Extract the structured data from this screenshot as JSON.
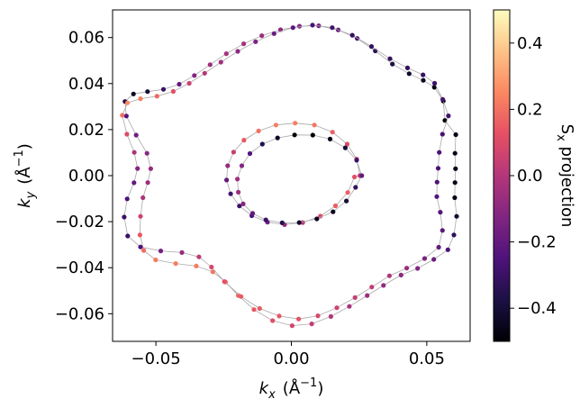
{
  "chart_data": {
    "type": "scatter",
    "title": "",
    "xlabel": {
      "var": "k",
      "sub": "x",
      "unit": "(Å",
      "sup": "−1",
      "close": ")"
    },
    "ylabel": {
      "var": "k",
      "sub": "y",
      "unit": "(Å",
      "sup": "−1",
      "close": ")"
    },
    "xlim": [
      -0.066,
      0.066
    ],
    "ylim": [
      -0.072,
      0.072
    ],
    "xticks": [
      -0.05,
      0.0,
      0.05
    ],
    "xtick_labels": [
      "−0.05",
      "0.00",
      "0.05"
    ],
    "yticks": [
      -0.06,
      -0.04,
      -0.02,
      0.0,
      0.02,
      0.04,
      0.06
    ],
    "ytick_labels": [
      "−0.06",
      "−0.04",
      "−0.02",
      "0.00",
      "0.02",
      "0.04",
      "0.06"
    ],
    "grid": false,
    "colormap": "magma",
    "colorbar": {
      "label": {
        "var": "S",
        "sub": "x",
        "rest": " projection"
      },
      "range": [
        -0.5,
        0.5
      ],
      "ticks": [
        -0.4,
        -0.2,
        0.0,
        0.2,
        0.4
      ],
      "tick_labels": [
        "−0.4",
        "−0.2",
        "0.0",
        "0.2",
        "0.4"
      ]
    },
    "contours": [
      {
        "id": "outer-a",
        "points": [
          [
            0.0607,
            0.0178
          ],
          [
            0.0567,
            0.024
          ],
          [
            0.0561,
            0.0324
          ],
          [
            0.0528,
            0.0384
          ],
          [
            0.0487,
            0.0414
          ],
          [
            0.0435,
            0.0443
          ],
          [
            0.0373,
            0.0485
          ],
          [
            0.031,
            0.0542
          ],
          [
            0.0243,
            0.0596
          ],
          [
            0.0173,
            0.0633
          ],
          [
            0.0101,
            0.0651
          ],
          [
            0.003,
            0.0649
          ],
          [
            -0.004,
            0.0634
          ],
          [
            -0.0109,
            0.0608
          ],
          [
            -0.0176,
            0.0573
          ],
          [
            -0.024,
            0.053
          ],
          [
            -0.03,
            0.0482
          ],
          [
            -0.0358,
            0.0435
          ],
          [
            -0.0414,
            0.0397
          ],
          [
            -0.0472,
            0.0375
          ],
          [
            -0.0531,
            0.0365
          ],
          [
            -0.0583,
            0.0355
          ],
          [
            -0.0614,
            0.0322
          ],
          [
            -0.0609,
            0.0259
          ],
          [
            -0.0573,
            0.0176
          ],
          [
            -0.0533,
            0.0097
          ],
          [
            -0.0519,
            0.003
          ],
          [
            -0.053,
            -0.003
          ],
          [
            -0.0548,
            -0.0096
          ],
          [
            -0.0557,
            -0.0177
          ],
          [
            -0.0559,
            -0.0258
          ],
          [
            -0.0545,
            -0.0325
          ],
          [
            -0.0501,
            -0.0366
          ],
          [
            -0.0427,
            -0.0382
          ],
          [
            -0.0351,
            -0.0393
          ],
          [
            -0.029,
            -0.0418
          ],
          [
            -0.0243,
            -0.0462
          ],
          [
            -0.0196,
            -0.0521
          ],
          [
            -0.0138,
            -0.0582
          ],
          [
            -0.0069,
            -0.063
          ],
          [
            0.0003,
            -0.0652
          ],
          [
            0.0075,
            -0.0644
          ],
          [
            0.0146,
            -0.0612
          ],
          [
            0.0214,
            -0.0568
          ],
          [
            0.028,
            -0.0521
          ],
          [
            0.034,
            -0.0477
          ],
          [
            0.0405,
            -0.0432
          ],
          [
            0.0466,
            -0.0403
          ],
          [
            0.0526,
            -0.0364
          ],
          [
            0.0578,
            -0.0322
          ],
          [
            0.06,
            -0.0258
          ],
          [
            0.061,
            -0.0177
          ],
          [
            0.0603,
            -0.0096
          ],
          [
            0.0604,
            -0.003
          ],
          [
            0.0606,
            0.003
          ],
          [
            0.0604,
            0.0097
          ]
        ],
        "sx": [
          -0.46,
          -0.48,
          -0.49,
          -0.48,
          -0.45,
          -0.42,
          -0.38,
          -0.33,
          -0.27,
          -0.21,
          -0.16,
          -0.12,
          -0.09,
          -0.06,
          -0.04,
          -0.03,
          -0.06,
          -0.12,
          -0.2,
          -0.3,
          -0.4,
          -0.45,
          -0.36,
          -0.25,
          -0.17,
          -0.11,
          -0.08,
          -0.06,
          -0.02,
          0.06,
          0.14,
          0.19,
          0.22,
          0.23,
          0.23,
          0.21,
          0.19,
          0.17,
          0.14,
          0.11,
          0.08,
          0.04,
          0.0,
          -0.03,
          -0.06,
          -0.08,
          -0.1,
          -0.13,
          -0.18,
          -0.25,
          -0.33,
          -0.41,
          -0.46,
          -0.47,
          -0.47,
          -0.46
        ]
      },
      {
        "id": "outer-b",
        "points": [
          [
            0.0559,
            0.0331
          ],
          [
            0.0529,
            0.0401
          ],
          [
            0.0486,
            0.0438
          ],
          [
            0.0429,
            0.0468
          ],
          [
            0.0364,
            0.0508
          ],
          [
            0.0296,
            0.0561
          ],
          [
            0.0225,
            0.061
          ],
          [
            0.0151,
            0.0643
          ],
          [
            0.0078,
            0.0654
          ],
          [
            0.0006,
            0.0643
          ],
          [
            -0.0064,
            0.0617
          ],
          [
            -0.0132,
            0.0582
          ],
          [
            -0.0198,
            0.054
          ],
          [
            -0.026,
            0.0493
          ],
          [
            -0.032,
            0.0445
          ],
          [
            -0.0377,
            0.0401
          ],
          [
            -0.0436,
            0.0366
          ],
          [
            -0.0496,
            0.0345
          ],
          [
            -0.0557,
            0.0334
          ],
          [
            -0.0605,
            0.0316
          ],
          [
            -0.0624,
            0.0262
          ],
          [
            -0.0607,
            0.018
          ],
          [
            -0.058,
            0.0101
          ],
          [
            -0.0568,
            0.0031
          ],
          [
            -0.0581,
            -0.0031
          ],
          [
            -0.0606,
            -0.0101
          ],
          [
            -0.0617,
            -0.018
          ],
          [
            -0.0604,
            -0.0262
          ],
          [
            -0.0557,
            -0.031
          ],
          [
            -0.0482,
            -0.0327
          ],
          [
            -0.0404,
            -0.0334
          ],
          [
            -0.0341,
            -0.0353
          ],
          [
            -0.0295,
            -0.0397
          ],
          [
            -0.0247,
            -0.046
          ],
          [
            -0.0186,
            -0.0525
          ],
          [
            -0.0117,
            -0.0577
          ],
          [
            -0.0045,
            -0.061
          ],
          [
            0.0027,
            -0.0623
          ],
          [
            0.0098,
            -0.0609
          ],
          [
            0.0168,
            -0.0574
          ],
          [
            0.0235,
            -0.053
          ],
          [
            0.0297,
            -0.0484
          ],
          [
            0.0362,
            -0.0435
          ],
          [
            0.0426,
            -0.0402
          ],
          [
            0.0492,
            -0.036
          ],
          [
            0.0544,
            -0.0311
          ],
          [
            0.0558,
            -0.0238
          ],
          [
            0.055,
            -0.0159
          ],
          [
            0.0537,
            -0.0091
          ],
          [
            0.0538,
            -0.0028
          ],
          [
            0.0542,
            0.0032
          ],
          [
            0.0546,
            0.0101
          ],
          [
            0.0558,
            0.018
          ],
          [
            0.058,
            0.026
          ]
        ],
        "sx": [
          -0.28,
          -0.3,
          -0.31,
          -0.32,
          -0.32,
          -0.32,
          -0.31,
          -0.29,
          -0.26,
          -0.22,
          -0.18,
          -0.14,
          -0.1,
          -0.05,
          0.0,
          0.06,
          0.12,
          0.18,
          0.23,
          0.25,
          0.2,
          0.1,
          -0.02,
          -0.12,
          -0.2,
          -0.26,
          -0.3,
          -0.3,
          -0.25,
          -0.16,
          -0.07,
          0.02,
          0.08,
          0.12,
          0.15,
          0.15,
          0.14,
          0.12,
          0.09,
          0.06,
          0.04,
          0.03,
          -0.01,
          -0.07,
          -0.14,
          -0.2,
          -0.22,
          -0.23,
          -0.24,
          -0.25,
          -0.26,
          -0.26,
          -0.27,
          -0.28
        ]
      },
      {
        "id": "inner-a",
        "points": [
          [
            0.0253,
            0.0
          ],
          [
            0.0241,
            0.0072
          ],
          [
            0.0206,
            0.0137
          ],
          [
            0.0152,
            0.0189
          ],
          [
            0.0085,
            0.022
          ],
          [
            0.0014,
            0.0228
          ],
          [
            -0.0057,
            0.022
          ],
          [
            -0.0121,
            0.0194
          ],
          [
            -0.0175,
            0.0154
          ],
          [
            -0.0213,
            0.0102
          ],
          [
            -0.0235,
            0.0043
          ],
          [
            -0.0239,
            -0.0019
          ],
          [
            -0.0224,
            -0.0079
          ],
          [
            -0.0192,
            -0.0132
          ],
          [
            -0.0146,
            -0.0174
          ],
          [
            -0.0088,
            -0.0202
          ],
          [
            -0.0025,
            -0.0213
          ],
          [
            0.0042,
            -0.0204
          ],
          [
            0.0107,
            -0.0176
          ],
          [
            0.0163,
            -0.0131
          ],
          [
            0.0208,
            -0.0073
          ],
          [
            0.0233,
            -0.0006
          ]
        ],
        "sx": [
          0.04,
          0.06,
          0.1,
          0.16,
          0.21,
          0.23,
          0.23,
          0.2,
          0.14,
          0.04,
          -0.08,
          -0.2,
          -0.28,
          -0.3,
          -0.26,
          -0.18,
          -0.08,
          0.02,
          0.1,
          0.15,
          0.16,
          0.12
        ]
      },
      {
        "id": "inner-b",
        "points": [
          [
            0.026,
            0.0
          ],
          [
            0.0241,
            0.0067
          ],
          [
            0.0199,
            0.0121
          ],
          [
            0.0143,
            0.0159
          ],
          [
            0.0079,
            0.0176
          ],
          [
            0.0012,
            0.0177
          ],
          [
            -0.0051,
            0.0164
          ],
          [
            -0.0107,
            0.0137
          ],
          [
            -0.0153,
            0.0096
          ],
          [
            -0.0183,
            0.0043
          ],
          [
            -0.0199,
            -0.0015
          ],
          [
            -0.0196,
            -0.0072
          ],
          [
            -0.0178,
            -0.0123
          ],
          [
            -0.0143,
            -0.0164
          ],
          [
            -0.0094,
            -0.0192
          ],
          [
            -0.0034,
            -0.0205
          ],
          [
            0.0029,
            -0.0204
          ],
          [
            0.0094,
            -0.0188
          ],
          [
            0.0154,
            -0.0157
          ],
          [
            0.0203,
            -0.011
          ],
          [
            0.0237,
            -0.0051
          ]
        ],
        "sx": [
          -0.2,
          -0.3,
          -0.4,
          -0.46,
          -0.49,
          -0.48,
          -0.44,
          -0.36,
          -0.24,
          -0.12,
          -0.05,
          -0.06,
          -0.12,
          -0.2,
          -0.29,
          -0.36,
          -0.41,
          -0.44,
          -0.44,
          -0.4,
          -0.32
        ]
      }
    ]
  }
}
